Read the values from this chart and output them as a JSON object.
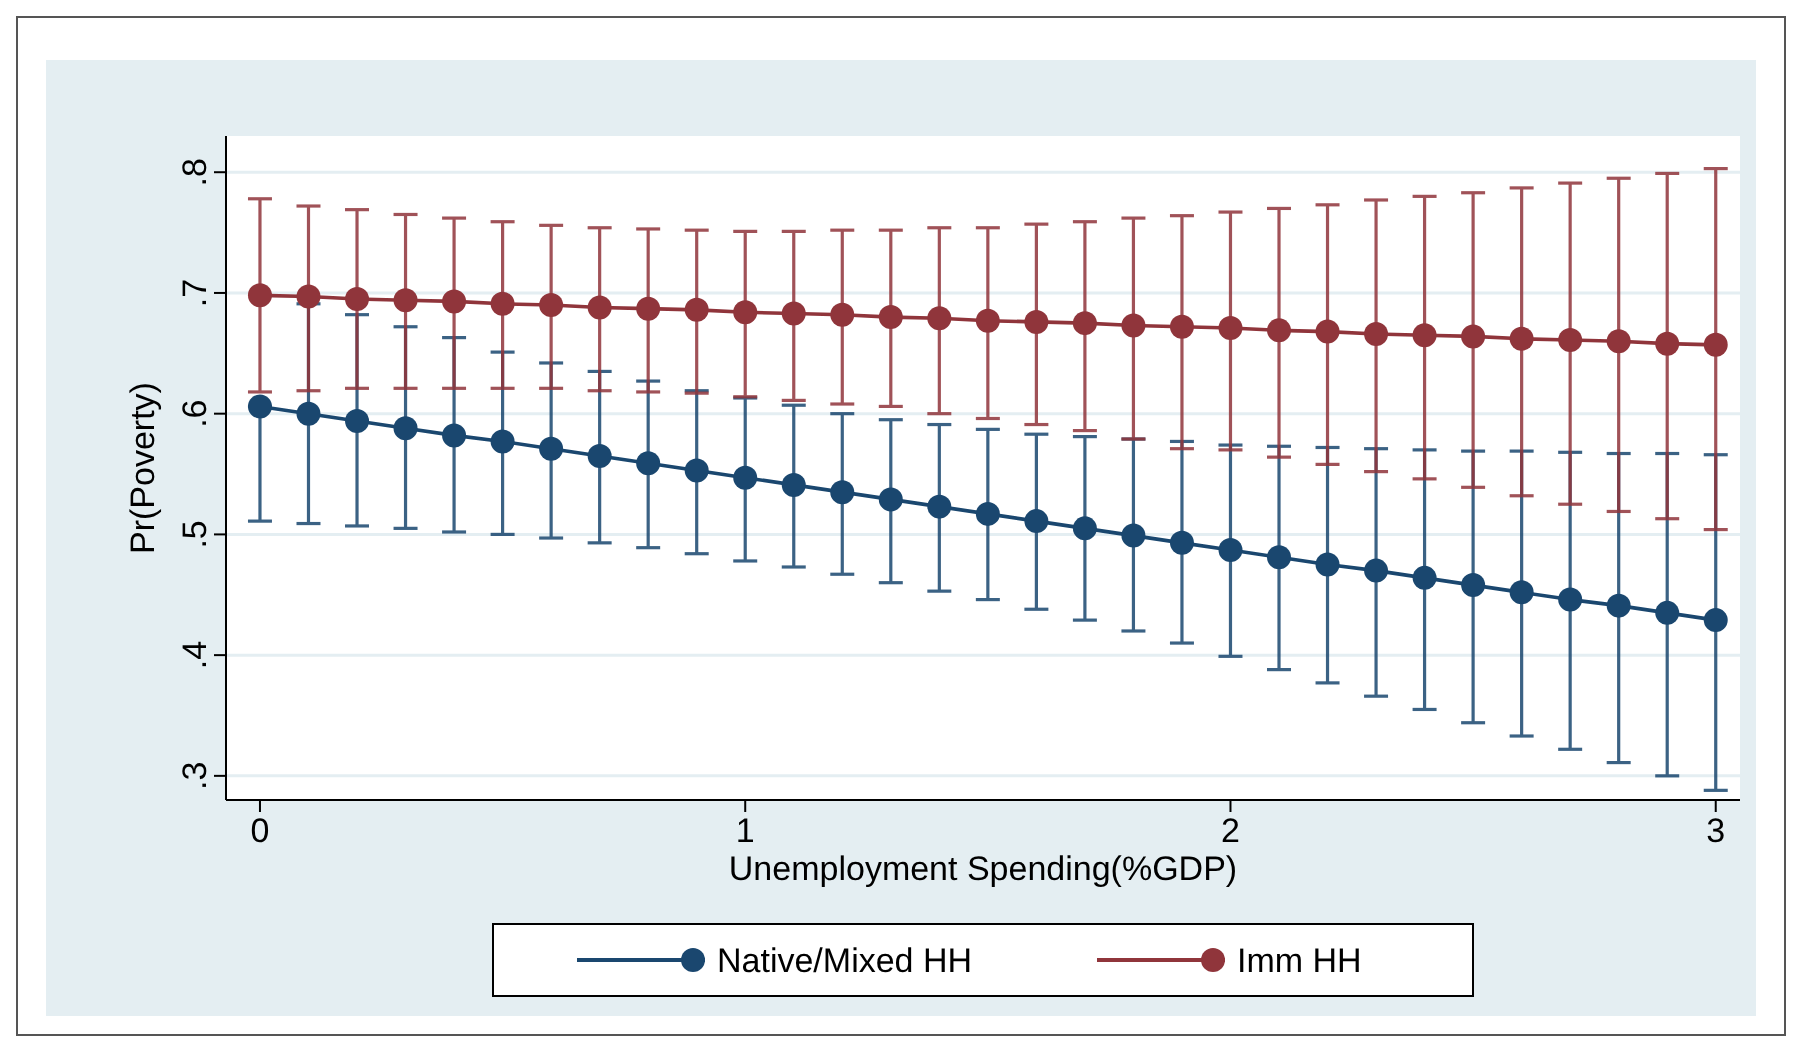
{
  "chart_data": {
    "type": "line",
    "xlabel": "Unemployment Spending(%GDP)",
    "ylabel": "Pr(Poverty)",
    "x": [
      0,
      0.1,
      0.2,
      0.3,
      0.4,
      0.5,
      0.6,
      0.7,
      0.8,
      0.9,
      1,
      1.1,
      1.2,
      1.3,
      1.4,
      1.5,
      1.6,
      1.7,
      1.8,
      1.9,
      2,
      2.1,
      2.2,
      2.3,
      2.4,
      2.5,
      2.6,
      2.7,
      2.8,
      2.9,
      3
    ],
    "xlim": [
      -0.07,
      3.05
    ],
    "xticks": [
      0,
      1,
      2,
      3
    ],
    "ylim": [
      0.28,
      0.83
    ],
    "yticks": [
      {
        "value": 0.3,
        "label": ".3"
      },
      {
        "value": 0.4,
        "label": ".4"
      },
      {
        "value": 0.5,
        "label": ".5"
      },
      {
        "value": 0.6,
        "label": ".6"
      },
      {
        "value": 0.7,
        "label": ".7"
      },
      {
        "value": 0.8,
        "label": ".8"
      }
    ],
    "grid": "y",
    "legend": "bottom",
    "marker": "circle",
    "line_style": "solid",
    "series": [
      {
        "name": "Native/Mixed HH",
        "color": "#1a476f",
        "values": [
          0.606,
          0.6,
          0.594,
          0.588,
          0.582,
          0.577,
          0.571,
          0.565,
          0.559,
          0.553,
          0.547,
          0.541,
          0.535,
          0.529,
          0.523,
          0.517,
          0.511,
          0.505,
          0.499,
          0.493,
          0.487,
          0.481,
          0.475,
          0.47,
          0.464,
          0.458,
          0.452,
          0.446,
          0.441,
          0.435,
          0.429
        ],
        "errors": [
          [
            0.511,
            0.606
          ],
          [
            0.509,
            0.691
          ],
          [
            0.507,
            0.682
          ],
          [
            0.505,
            0.672
          ],
          [
            0.502,
            0.663
          ],
          [
            0.5,
            0.651
          ],
          [
            0.497,
            0.642
          ],
          [
            0.493,
            0.635
          ],
          [
            0.489,
            0.627
          ],
          [
            0.484,
            0.619
          ],
          [
            0.478,
            0.613
          ],
          [
            0.473,
            0.607
          ],
          [
            0.467,
            0.6
          ],
          [
            0.46,
            0.595
          ],
          [
            0.453,
            0.591
          ],
          [
            0.446,
            0.587
          ],
          [
            0.438,
            0.583
          ],
          [
            0.429,
            0.581
          ],
          [
            0.42,
            0.579
          ],
          [
            0.41,
            0.577
          ],
          [
            0.399,
            0.574
          ],
          [
            0.388,
            0.573
          ],
          [
            0.377,
            0.572
          ],
          [
            0.366,
            0.571
          ],
          [
            0.355,
            0.57
          ],
          [
            0.344,
            0.569
          ],
          [
            0.333,
            0.569
          ],
          [
            0.322,
            0.568
          ],
          [
            0.311,
            0.567
          ],
          [
            0.3,
            0.567
          ],
          [
            0.288,
            0.566
          ]
        ]
      },
      {
        "name": "Imm HH",
        "color": "#90353b",
        "values": [
          0.698,
          0.697,
          0.695,
          0.694,
          0.693,
          0.691,
          0.69,
          0.688,
          0.687,
          0.686,
          0.684,
          0.683,
          0.682,
          0.68,
          0.679,
          0.677,
          0.676,
          0.675,
          0.673,
          0.672,
          0.671,
          0.669,
          0.668,
          0.666,
          0.665,
          0.664,
          0.662,
          0.661,
          0.66,
          0.658,
          0.657
        ],
        "errors": [
          [
            0.618,
            0.778
          ],
          [
            0.619,
            0.772
          ],
          [
            0.621,
            0.769
          ],
          [
            0.621,
            0.765
          ],
          [
            0.621,
            0.762
          ],
          [
            0.621,
            0.759
          ],
          [
            0.621,
            0.756
          ],
          [
            0.619,
            0.754
          ],
          [
            0.618,
            0.753
          ],
          [
            0.617,
            0.752
          ],
          [
            0.614,
            0.751
          ],
          [
            0.611,
            0.751
          ],
          [
            0.608,
            0.752
          ],
          [
            0.606,
            0.752
          ],
          [
            0.6,
            0.754
          ],
          [
            0.596,
            0.754
          ],
          [
            0.591,
            0.757
          ],
          [
            0.586,
            0.759
          ],
          [
            0.579,
            0.762
          ],
          [
            0.571,
            0.764
          ],
          [
            0.57,
            0.767
          ],
          [
            0.564,
            0.77
          ],
          [
            0.558,
            0.773
          ],
          [
            0.552,
            0.777
          ],
          [
            0.546,
            0.78
          ],
          [
            0.539,
            0.783
          ],
          [
            0.532,
            0.787
          ],
          [
            0.525,
            0.791
          ],
          [
            0.519,
            0.795
          ],
          [
            0.513,
            0.799
          ],
          [
            0.504,
            0.803
          ]
        ]
      }
    ]
  }
}
